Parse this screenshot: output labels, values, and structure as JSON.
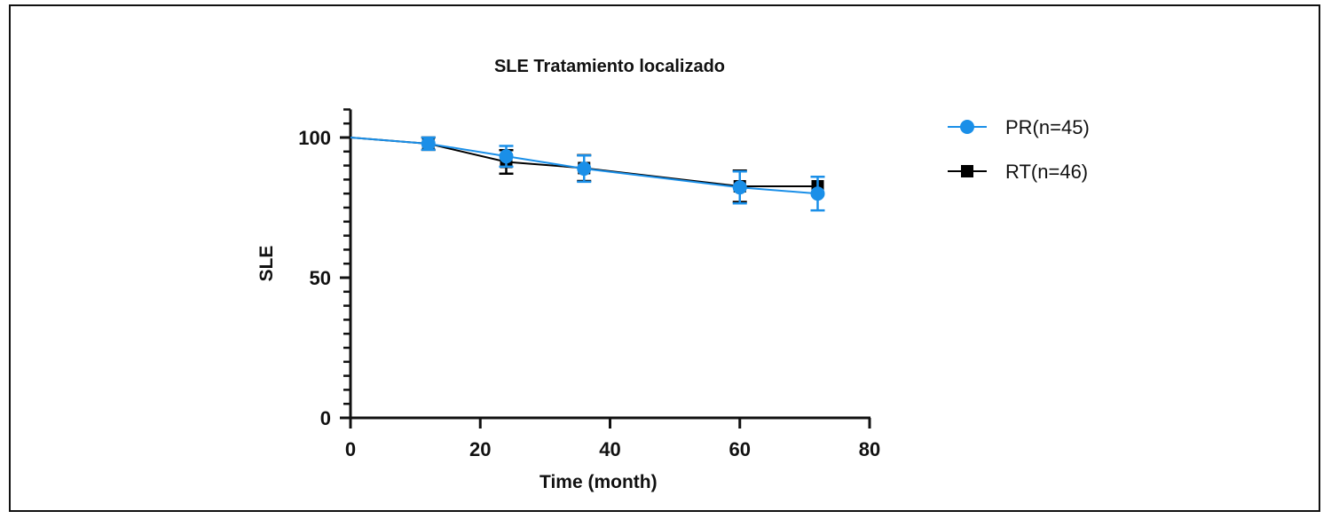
{
  "chart_data": {
    "type": "line",
    "title": "SLE Tratamiento localizado",
    "xlabel": "Time (month)",
    "ylabel": "SLE",
    "xlim": [
      0,
      80
    ],
    "ylim": [
      0,
      110
    ],
    "xticks": [
      0,
      20,
      40,
      60,
      80
    ],
    "yticks": [
      0,
      50,
      100
    ],
    "legend_position": "right",
    "series": [
      {
        "name": "RT(n=46)",
        "color": "#000000",
        "marker": "square",
        "x": [
          0,
          12,
          24,
          36,
          60,
          72
        ],
        "y": [
          100,
          97.8,
          91.3,
          89.1,
          82.6,
          82.6
        ],
        "err": [
          0,
          2.2,
          4.2,
          4.6,
          5.6,
          0
        ]
      },
      {
        "name": "PR(n=45)",
        "color": "#1a8fe8",
        "marker": "circle",
        "x": [
          0,
          12,
          24,
          36,
          60,
          72
        ],
        "y": [
          100,
          97.8,
          93.3,
          88.9,
          82.2,
          80.0
        ],
        "err": [
          0,
          2.2,
          3.7,
          4.7,
          5.7,
          6.0
        ]
      }
    ]
  }
}
